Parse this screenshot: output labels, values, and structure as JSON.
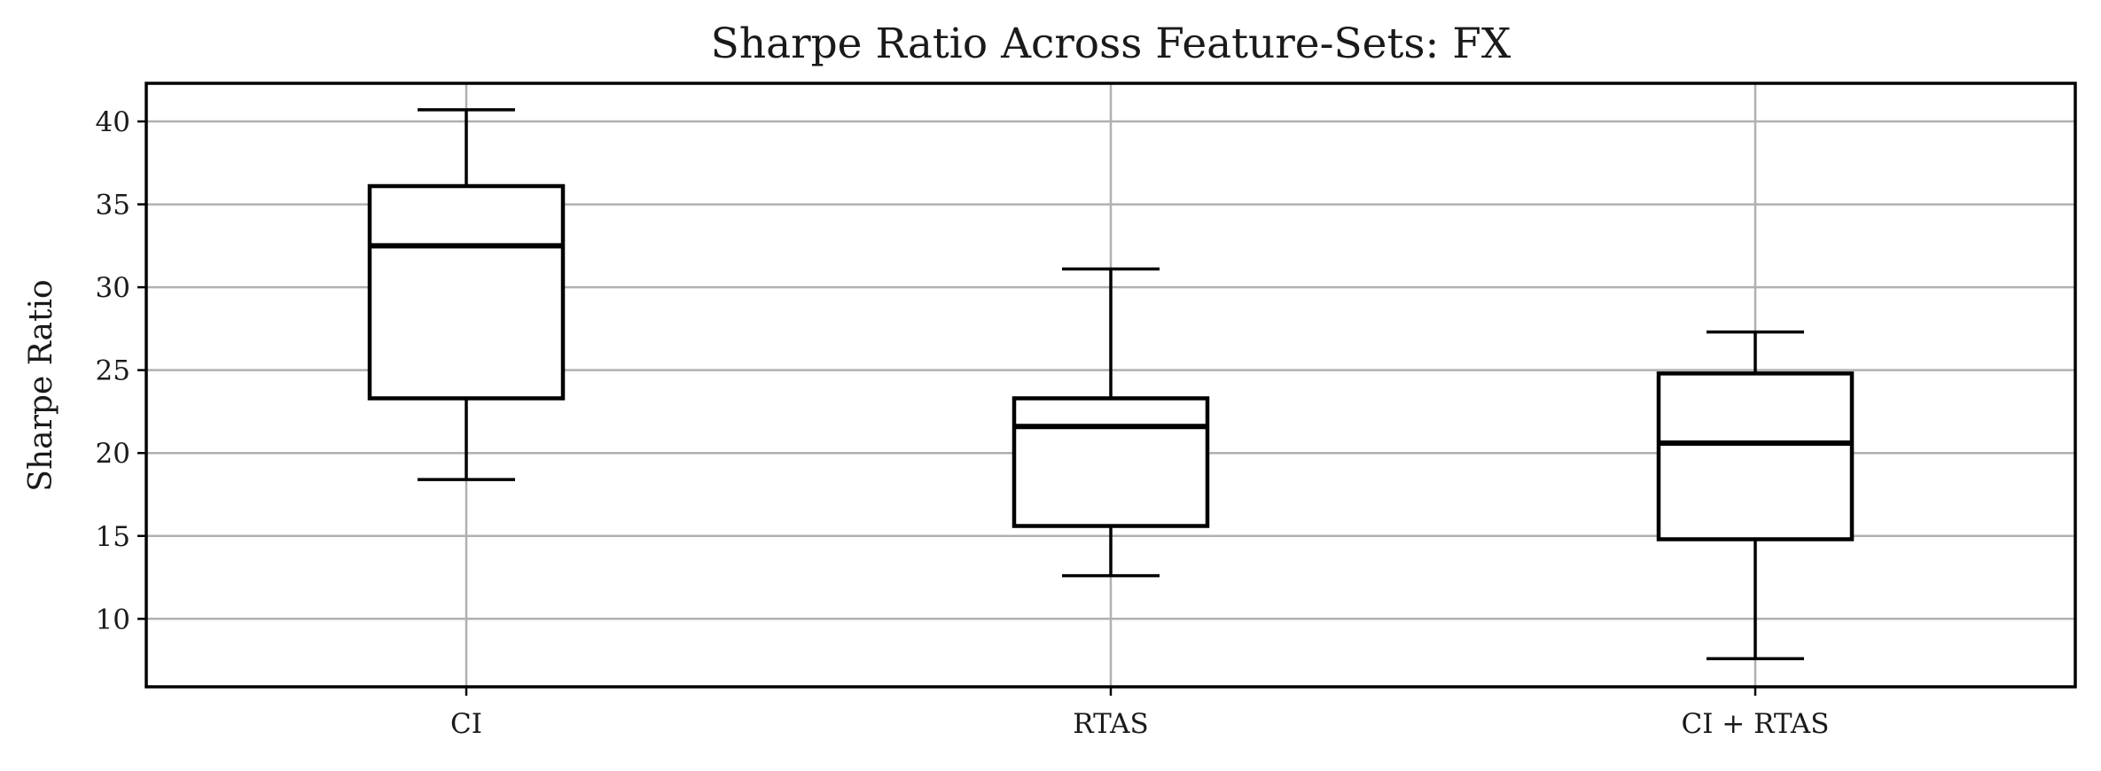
{
  "chart_data": {
    "type": "box",
    "title": "Sharpe Ratio Across Feature-Sets: FX",
    "xlabel": "",
    "ylabel": "Sharpe Ratio",
    "ylim": [
      5.9,
      42.3
    ],
    "yticks": [
      10,
      15,
      20,
      25,
      30,
      35,
      40
    ],
    "grid": true,
    "categories": [
      "CI",
      "RTAS",
      "CI + RTAS"
    ],
    "boxes": [
      {
        "category": "CI",
        "whisker_low": 18.4,
        "q1": 23.3,
        "median": 32.5,
        "q3": 36.1,
        "whisker_high": 40.7
      },
      {
        "category": "RTAS",
        "whisker_low": 12.6,
        "q1": 15.6,
        "median": 21.6,
        "q3": 23.3,
        "whisker_high": 31.1
      },
      {
        "category": "CI + RTAS",
        "whisker_low": 7.6,
        "q1": 14.8,
        "median": 20.6,
        "q3": 24.8,
        "whisker_high": 27.3
      }
    ],
    "colors": {
      "box": "#000000",
      "grid": "#b0b0b0",
      "frame": "#000000"
    }
  }
}
